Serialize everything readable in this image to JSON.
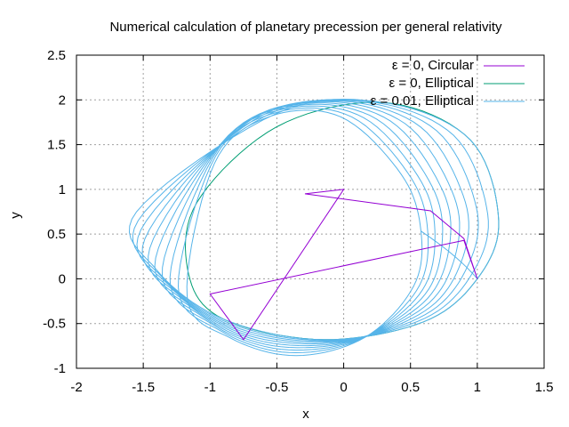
{
  "chart_data": {
    "type": "line",
    "title": "Numerical calculation of planetary precession per general relativity",
    "xlabel": "x",
    "ylabel": "y",
    "xlim": [
      -2,
      1.5
    ],
    "ylim": [
      -1,
      2.5
    ],
    "x_ticks": [
      "-2",
      "-1.5",
      "-1",
      "-0.5",
      "0",
      "0.5",
      "1",
      "1.5"
    ],
    "y_ticks": [
      "-1",
      "-0.5",
      "0",
      "0.5",
      "1",
      "1.5",
      "2",
      "2.5"
    ],
    "grid": true,
    "legend_position": "top-right",
    "series": [
      {
        "name": "ε = 0, Circular",
        "color": "#9400d3",
        "x": [
          0.0,
          -0.29,
          0.65,
          0.9,
          1.0,
          0.9,
          -1.0,
          -0.75,
          0.0,
          -0.29
        ],
        "y": [
          1.0,
          0.95,
          0.76,
          0.45,
          0.0,
          0.43,
          -0.17,
          -0.68,
          1.0,
          0.95
        ]
      },
      {
        "name": "ε = 0, Elliptical",
        "color": "#009e73",
        "orbit": {
          "precession_deg_per_orbit": 0,
          "orbits": 1
        },
        "x": [
          1.0,
          1.16,
          0.95,
          0.3,
          -0.5,
          -1.1,
          -1.16,
          -0.9,
          -0.15,
          0.6,
          1.0
        ],
        "y": [
          0.0,
          0.65,
          1.55,
          1.97,
          1.7,
          0.85,
          0.05,
          -0.45,
          -0.68,
          -0.48,
          0.0
        ]
      },
      {
        "name": "ε = 0.01, Elliptical",
        "color": "#56b4e9",
        "orbit": {
          "precession_deg_per_orbit": 3.6,
          "orbits": 10
        },
        "x": [
          1.0,
          1.16,
          0.95,
          0.3,
          -0.5,
          -1.55,
          -1.4,
          -0.9,
          -0.15,
          0.6,
          1.0
        ],
        "y": [
          0.0,
          0.65,
          1.55,
          1.97,
          1.85,
          0.75,
          0.1,
          -0.45,
          -0.68,
          -0.48,
          0.0
        ]
      }
    ]
  }
}
